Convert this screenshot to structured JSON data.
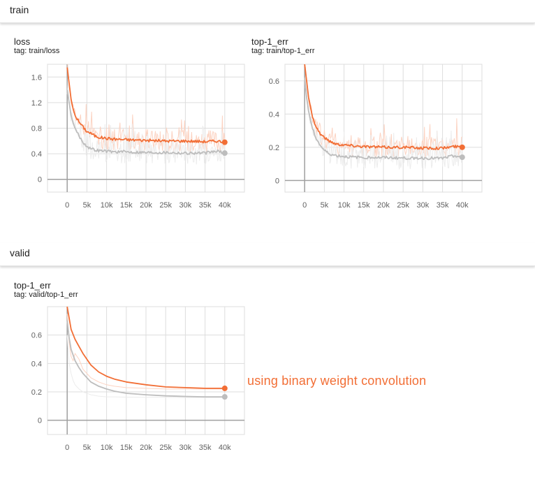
{
  "sections": {
    "train": {
      "title": "train"
    },
    "valid": {
      "title": "valid"
    }
  },
  "charts": {
    "train_loss": {
      "title": "loss",
      "tag": "tag: train/loss"
    },
    "train_top1": {
      "title": "top-1_err",
      "tag": "tag: train/top-1_err"
    },
    "valid_top1": {
      "title": "top-1_err",
      "tag": "tag: valid/top-1_err"
    }
  },
  "annotation": {
    "text": "using binary weight convolution"
  },
  "colors": {
    "accent": "#f26e35",
    "baseline": "#bdbdbd",
    "raw_accent": "#fcd3c2",
    "raw_baseline": "#ececec",
    "grid": "#dddddd",
    "axis": "#a0a0a0"
  },
  "chart_data": [
    {
      "type": "line",
      "title": "loss",
      "subtitle": "tag: train/loss",
      "xlim": [
        -5000,
        45000
      ],
      "ylim": [
        -0.2,
        1.8
      ],
      "x_ticks": [
        0,
        5000,
        10000,
        15000,
        20000,
        25000,
        30000,
        35000,
        40000
      ],
      "x_tick_labels": [
        "0",
        "5k",
        "10k",
        "15k",
        "20k",
        "25k",
        "30k",
        "35k",
        "40k"
      ],
      "y_ticks": [
        0,
        0.4,
        0.8,
        1.2,
        1.6
      ],
      "y_tick_labels": [
        "0",
        "0.4",
        "0.8",
        "1.2",
        "1.6"
      ],
      "grid": true,
      "noisy_raw": true,
      "series": [
        {
          "color": "#f26e35",
          "raw_color": "#fcd3c2",
          "x": [
            0,
            500,
            1000,
            1500,
            2000,
            3000,
            4000,
            5000,
            6000,
            7000,
            8000,
            10000,
            12000,
            15000,
            20000,
            25000,
            30000,
            35000,
            38000,
            40000
          ],
          "y": [
            1.75,
            1.5,
            1.25,
            1.1,
            1.0,
            0.9,
            0.82,
            0.75,
            0.72,
            0.68,
            0.66,
            0.64,
            0.63,
            0.62,
            0.61,
            0.6,
            0.6,
            0.59,
            0.6,
            0.58
          ]
        },
        {
          "color": "#bdbdbd",
          "raw_color": "#ececec",
          "x": [
            0,
            500,
            1000,
            1500,
            2000,
            3000,
            4000,
            5000,
            6000,
            7000,
            8000,
            10000,
            12000,
            15000,
            20000,
            25000,
            30000,
            35000,
            38000,
            40000
          ],
          "y": [
            1.4,
            1.2,
            1.0,
            0.88,
            0.8,
            0.68,
            0.58,
            0.52,
            0.48,
            0.46,
            0.45,
            0.44,
            0.43,
            0.43,
            0.42,
            0.42,
            0.41,
            0.41,
            0.44,
            0.41
          ]
        }
      ]
    },
    {
      "type": "line",
      "title": "top-1_err",
      "subtitle": "tag: train/top-1_err",
      "xlim": [
        -5000,
        45000
      ],
      "ylim": [
        -0.07,
        0.7
      ],
      "x_ticks": [
        0,
        5000,
        10000,
        15000,
        20000,
        25000,
        30000,
        35000,
        40000
      ],
      "x_tick_labels": [
        "0",
        "5k",
        "10k",
        "15k",
        "20k",
        "25k",
        "30k",
        "35k",
        "40k"
      ],
      "y_ticks": [
        0,
        0.2,
        0.4,
        0.6
      ],
      "y_tick_labels": [
        "0",
        "0.2",
        "0.4",
        "0.6"
      ],
      "grid": true,
      "noisy_raw": true,
      "series": [
        {
          "color": "#f26e35",
          "raw_color": "#fcd3c2",
          "x": [
            0,
            500,
            1000,
            1500,
            2000,
            3000,
            4000,
            5000,
            6000,
            7000,
            8000,
            10000,
            12000,
            15000,
            20000,
            25000,
            30000,
            35000,
            38000,
            40000
          ],
          "y": [
            0.7,
            0.6,
            0.5,
            0.44,
            0.38,
            0.32,
            0.28,
            0.26,
            0.24,
            0.23,
            0.22,
            0.215,
            0.21,
            0.205,
            0.2,
            0.2,
            0.195,
            0.195,
            0.205,
            0.2
          ]
        },
        {
          "color": "#bdbdbd",
          "raw_color": "#ececec",
          "x": [
            0,
            500,
            1000,
            1500,
            2000,
            3000,
            4000,
            5000,
            6000,
            7000,
            8000,
            10000,
            12000,
            15000,
            20000,
            25000,
            30000,
            35000,
            38000,
            40000
          ],
          "y": [
            0.62,
            0.5,
            0.42,
            0.36,
            0.31,
            0.25,
            0.21,
            0.18,
            0.165,
            0.155,
            0.15,
            0.145,
            0.14,
            0.14,
            0.138,
            0.135,
            0.135,
            0.133,
            0.15,
            0.14
          ]
        }
      ]
    },
    {
      "type": "line",
      "title": "top-1_err",
      "subtitle": "tag: valid/top-1_err",
      "xlim": [
        -5000,
        45000
      ],
      "ylim": [
        -0.1,
        0.8
      ],
      "x_ticks": [
        0,
        5000,
        10000,
        15000,
        20000,
        25000,
        30000,
        35000,
        40000
      ],
      "x_tick_labels": [
        "0",
        "5k",
        "10k",
        "15k",
        "20k",
        "25k",
        "30k",
        "35k",
        "40k"
      ],
      "y_ticks": [
        0,
        0.2,
        0.4,
        0.6
      ],
      "y_tick_labels": [
        "0",
        "0.2",
        "0.4",
        "0.6"
      ],
      "grid": true,
      "noisy_raw": false,
      "series": [
        {
          "color": "#f26e35",
          "raw_color": "#fcd3c2",
          "x": [
            0,
            500,
            1000,
            2000,
            3000,
            4000,
            5000,
            6000,
            8000,
            10000,
            12000,
            15000,
            20000,
            25000,
            30000,
            35000,
            40000
          ],
          "y": [
            0.8,
            0.72,
            0.64,
            0.57,
            0.52,
            0.47,
            0.43,
            0.39,
            0.34,
            0.31,
            0.29,
            0.27,
            0.25,
            0.235,
            0.23,
            0.225,
            0.225
          ],
          "raw_x": [
            0,
            500,
            1000,
            1500,
            2000,
            3000,
            4000,
            5000,
            6000,
            8000,
            10000,
            12000,
            15000,
            20000,
            25000,
            30000,
            35000,
            40000
          ],
          "raw_y": [
            0.75,
            0.55,
            0.45,
            0.42,
            0.47,
            0.43,
            0.36,
            0.33,
            0.3,
            0.27,
            0.25,
            0.24,
            0.23,
            0.225,
            0.22,
            0.22,
            0.22,
            0.22
          ]
        },
        {
          "color": "#bdbdbd",
          "raw_color": "#ececec",
          "x": [
            0,
            500,
            1000,
            2000,
            3000,
            4000,
            5000,
            6000,
            8000,
            10000,
            12000,
            15000,
            20000,
            25000,
            30000,
            35000,
            40000
          ],
          "y": [
            0.7,
            0.58,
            0.5,
            0.42,
            0.37,
            0.33,
            0.3,
            0.27,
            0.24,
            0.22,
            0.205,
            0.19,
            0.18,
            0.172,
            0.168,
            0.165,
            0.165
          ],
          "raw_x": [
            0,
            500,
            1000,
            1500,
            2000,
            3000,
            4000,
            5000,
            6000,
            8000,
            10000,
            12000,
            15000,
            20000,
            25000,
            30000,
            35000,
            40000
          ],
          "raw_y": [
            0.6,
            0.4,
            0.33,
            0.28,
            0.25,
            0.22,
            0.2,
            0.19,
            0.18,
            0.17,
            0.165,
            0.165,
            0.163,
            0.162,
            0.162,
            0.16,
            0.16,
            0.16
          ]
        }
      ]
    }
  ]
}
